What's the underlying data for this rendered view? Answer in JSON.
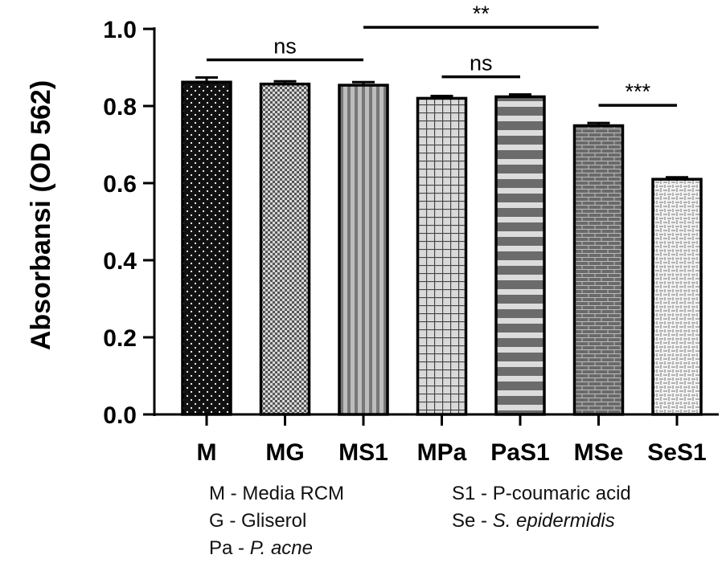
{
  "chart_data": {
    "type": "bar",
    "ylabel": "Absorbansi (OD 562)",
    "ylim": [
      0,
      1.0
    ],
    "yticks": [
      "0.0",
      "0.2",
      "0.4",
      "0.6",
      "0.8",
      "1.0"
    ],
    "categories": [
      "M",
      "MG",
      "MS1",
      "MPa",
      "PaS1",
      "MSe",
      "SeS1"
    ],
    "values": [
      0.862,
      0.857,
      0.854,
      0.82,
      0.824,
      0.749,
      0.61
    ],
    "errors": [
      0.012,
      0.007,
      0.008,
      0.006,
      0.006,
      0.007,
      0.005
    ],
    "significance": [
      {
        "from": "M",
        "to": "MS1",
        "label": "ns"
      },
      {
        "from": "MS1",
        "to": "MSe",
        "label": "**"
      },
      {
        "from": "MPa",
        "to": "PaS1",
        "label": "ns"
      },
      {
        "from": "MSe",
        "to": "SeS1",
        "label": "***"
      }
    ]
  },
  "legend": {
    "col1": [
      {
        "prefix": "M - ",
        "text": "Media RCM",
        "italic": ""
      },
      {
        "prefix": "G - ",
        "text": "Gliserol",
        "italic": ""
      },
      {
        "prefix": "Pa - ",
        "text": "",
        "italic": "P. acne"
      }
    ],
    "col2": [
      {
        "prefix": "S1 - ",
        "text": "P-coumaric acid",
        "italic": ""
      },
      {
        "prefix": "Se - ",
        "text": "",
        "italic": "S. epidermidis"
      }
    ]
  }
}
